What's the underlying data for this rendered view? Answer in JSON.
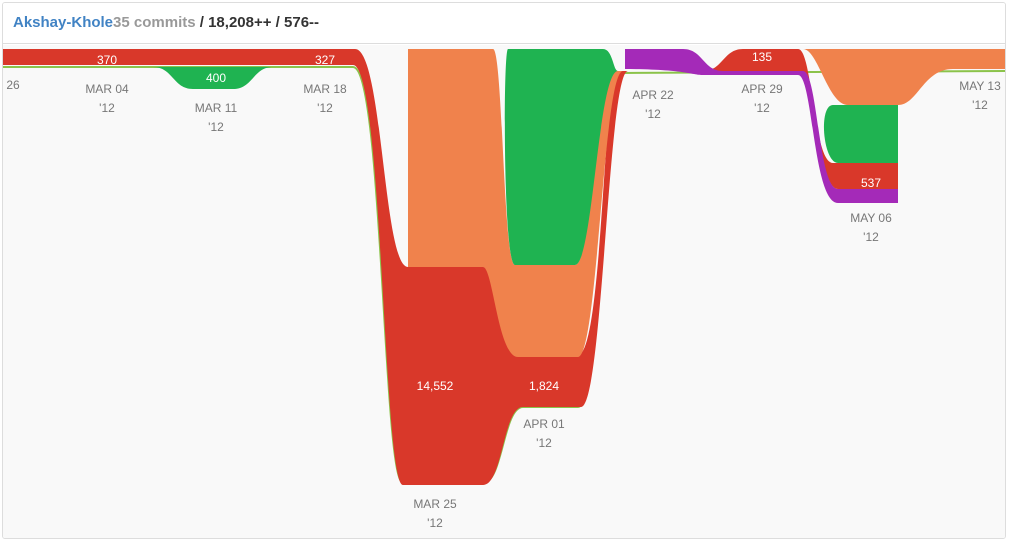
{
  "header": {
    "user": "Akshay-Khole",
    "commits": "35 commits",
    "separator": "/",
    "additions": "18,208++",
    "deletions": "576--"
  },
  "weeks": [
    {
      "date": "26"
    },
    {
      "date": "MAR 04",
      "year": "'12",
      "value": "370"
    },
    {
      "date": "MAR 11",
      "year": "'12",
      "value": "400"
    },
    {
      "date": "MAR 18",
      "year": "'12",
      "value": "327"
    },
    {
      "date": "MAR 25",
      "year": "'12",
      "value": "14,552"
    },
    {
      "date": "APR 01",
      "year": "'12",
      "value": "1,824"
    },
    {
      "date": "APR 22",
      "year": "'12"
    },
    {
      "date": "APR 29",
      "year": "'12",
      "value": "135"
    },
    {
      "date": "MAY 06",
      "year": "'12",
      "value": "537"
    },
    {
      "date": "MAY 13",
      "year": "'12"
    }
  ]
}
